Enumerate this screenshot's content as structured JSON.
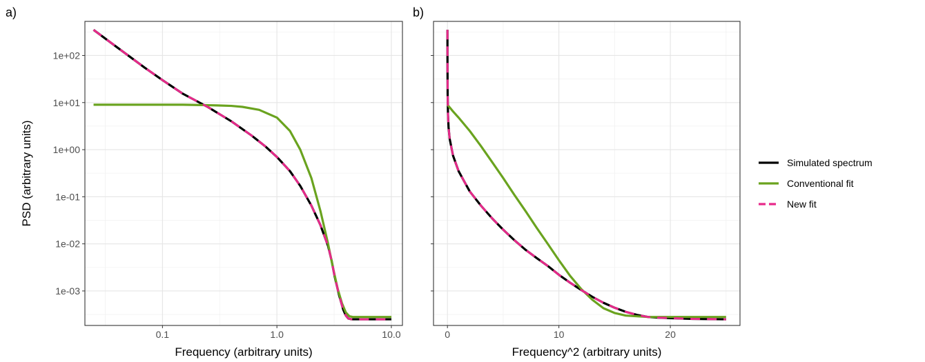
{
  "chart_data": [
    {
      "panel_label": "a)",
      "type": "line",
      "xlabel": "Frequency (arbitrary units)",
      "ylabel": "PSD (arbitrary units)",
      "x_scale": "log10",
      "y_scale": "log10",
      "xlim": [
        0.021,
        12.5
      ],
      "ylim": [
        0.000185,
        530
      ],
      "x_ticks": [
        0.1,
        1.0,
        10.0
      ],
      "x_tick_labels": [
        "0.1",
        "1.0",
        "10.0"
      ],
      "y_ticks": [
        0.001,
        0.01,
        0.1,
        1,
        10,
        100
      ],
      "y_tick_labels": [
        "1e-03",
        "1e-02",
        "1e-01",
        "1e+00",
        "1e+01",
        "1e+02"
      ],
      "grid": true,
      "series": [
        {
          "name": "Simulated spectrum",
          "color": "#000000",
          "dashed": false,
          "x": [
            0.025,
            0.04,
            0.07,
            0.1,
            0.15,
            0.25,
            0.4,
            0.6,
            0.8,
            1.0,
            1.3,
            1.6,
            2.0,
            2.4,
            2.8,
            3.0,
            3.2,
            3.5,
            3.8,
            4.0,
            4.2,
            4.5,
            5.0,
            6.0,
            8.0,
            10.0
          ],
          "y": [
            350,
            150,
            55,
            30,
            15.5,
            8.0,
            4.0,
            2.0,
            1.15,
            0.7,
            0.35,
            0.17,
            0.065,
            0.025,
            0.009,
            0.0045,
            0.002,
            0.0008,
            0.0004,
            0.0003,
            0.00026,
            0.00025,
            0.00025,
            0.00025,
            0.00025,
            0.00025
          ]
        },
        {
          "name": "Conventional fit",
          "color": "#6aa31f",
          "dashed": false,
          "x": [
            0.025,
            0.05,
            0.1,
            0.15,
            0.2,
            0.25,
            0.3,
            0.4,
            0.5,
            0.7,
            1.0,
            1.3,
            1.6,
            2.0,
            2.4,
            2.8,
            3.1,
            3.4,
            3.7,
            4.0,
            4.3,
            4.6,
            5.0,
            6.0,
            10.0
          ],
          "y": [
            9.0,
            9.0,
            9.0,
            9.0,
            8.9,
            8.8,
            8.7,
            8.5,
            8.1,
            7.0,
            4.8,
            2.5,
            1.0,
            0.25,
            0.05,
            0.01,
            0.003,
            0.0011,
            0.00055,
            0.00035,
            0.00029,
            0.00028,
            0.00028,
            0.00028,
            0.00028
          ]
        },
        {
          "name": "New fit",
          "color": "#e7298a",
          "dashed": true,
          "x": [
            0.025,
            0.04,
            0.07,
            0.1,
            0.15,
            0.25,
            0.4,
            0.6,
            0.8,
            1.0,
            1.3,
            1.6,
            2.0,
            2.4,
            2.8,
            3.0,
            3.2,
            3.5,
            3.8,
            4.0,
            4.2,
            4.5,
            5.0,
            6.0,
            8.0,
            10.0
          ],
          "y": [
            350,
            150,
            55,
            30,
            15.5,
            8.0,
            4.0,
            2.0,
            1.15,
            0.7,
            0.35,
            0.17,
            0.065,
            0.025,
            0.009,
            0.0045,
            0.002,
            0.0008,
            0.0004,
            0.0003,
            0.00026,
            0.00025,
            0.00025,
            0.00025,
            0.00025,
            0.00025
          ]
        }
      ]
    },
    {
      "panel_label": "b)",
      "type": "line",
      "xlabel": "Frequency^2 (arbitrary units)",
      "ylabel": "",
      "x_scale": "linear",
      "y_scale": "log10",
      "xlim": [
        -1.25,
        26.25
      ],
      "ylim": [
        0.000185,
        530
      ],
      "x_ticks": [
        0,
        10,
        20
      ],
      "x_tick_labels": [
        "0",
        "10",
        "20"
      ],
      "grid": true,
      "series": [
        {
          "name": "Simulated spectrum",
          "color": "#000000",
          "dashed": false,
          "x": [
            0.000625,
            0.005,
            0.02,
            0.05,
            0.1,
            0.2,
            0.5,
            1,
            2,
            3,
            4,
            5,
            6,
            7,
            8,
            9,
            10,
            11,
            12,
            13,
            14,
            15,
            16,
            17,
            18,
            19,
            20,
            22,
            25
          ],
          "y": [
            350,
            60,
            15,
            5.5,
            3.0,
            1.7,
            0.75,
            0.35,
            0.13,
            0.065,
            0.035,
            0.02,
            0.012,
            0.0075,
            0.005,
            0.0034,
            0.0022,
            0.0015,
            0.00105,
            0.00075,
            0.00056,
            0.00044,
            0.00036,
            0.00031,
            0.00028,
            0.00027,
            0.000265,
            0.000255,
            0.00025
          ]
        },
        {
          "name": "Conventional fit",
          "color": "#6aa31f",
          "dashed": false,
          "x": [
            0.000625,
            0.5,
            1,
            2,
            3,
            4,
            5,
            6,
            7,
            8,
            9,
            10,
            11,
            12,
            13,
            14,
            15,
            16,
            18,
            20,
            22,
            25
          ],
          "y": [
            9.0,
            6.5,
            4.8,
            2.5,
            1.2,
            0.55,
            0.25,
            0.11,
            0.05,
            0.022,
            0.01,
            0.0045,
            0.0021,
            0.0011,
            0.00065,
            0.00043,
            0.00034,
            0.0003,
            0.00028,
            0.00028,
            0.00028,
            0.00028
          ]
        },
        {
          "name": "New fit",
          "color": "#e7298a",
          "dashed": true,
          "x": [
            0.000625,
            0.005,
            0.02,
            0.05,
            0.1,
            0.2,
            0.5,
            1,
            2,
            3,
            4,
            5,
            6,
            7,
            8,
            9,
            10,
            11,
            12,
            13,
            14,
            15,
            16,
            17,
            18,
            19,
            20,
            22,
            25
          ],
          "y": [
            350,
            60,
            15,
            5.5,
            3.0,
            1.7,
            0.75,
            0.35,
            0.13,
            0.065,
            0.035,
            0.02,
            0.012,
            0.0075,
            0.005,
            0.0034,
            0.0022,
            0.0015,
            0.00105,
            0.00075,
            0.00056,
            0.00044,
            0.00036,
            0.00031,
            0.00028,
            0.00027,
            0.000265,
            0.000255,
            0.00025
          ]
        }
      ]
    }
  ],
  "legend": {
    "placement": "right",
    "items": [
      {
        "label": "Simulated spectrum",
        "color": "#000000",
        "dashed": false
      },
      {
        "label": "Conventional fit",
        "color": "#6aa31f",
        "dashed": false
      },
      {
        "label": "New fit",
        "color": "#e7298a",
        "dashed": true
      }
    ]
  }
}
